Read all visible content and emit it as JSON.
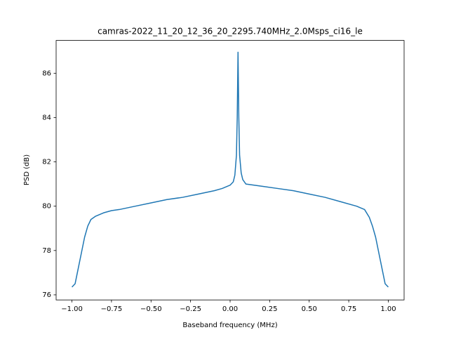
{
  "chart_data": {
    "type": "line",
    "title": "camras-2022_11_20_12_36_20_2295.740MHz_2.0Msps_ci16_le",
    "x_label": "Baseband frequency (MHz)",
    "y_label": "PSD (dB)",
    "xlim": [
      -1.1,
      1.1
    ],
    "ylim": [
      75.77,
      87.48
    ],
    "xticks": [
      {
        "value": -1,
        "label": "−1.00"
      },
      {
        "value": -0.75,
        "label": "−0.75"
      },
      {
        "value": -0.5,
        "label": "−0.50"
      },
      {
        "value": -0.25,
        "label": "−0.25"
      },
      {
        "value": 0,
        "label": "0.00"
      },
      {
        "value": 0.25,
        "label": "0.25"
      },
      {
        "value": 0.5,
        "label": "0.50"
      },
      {
        "value": 0.75,
        "label": "0.75"
      },
      {
        "value": 1,
        "label": "1.00"
      }
    ],
    "yticks": [
      76,
      78,
      80,
      82,
      84,
      86
    ],
    "grid": false,
    "series": [
      {
        "color": "#1f77b4",
        "x": [
          -1.0,
          -0.98,
          -0.96,
          -0.94,
          -0.92,
          -0.9,
          -0.88,
          -0.85,
          -0.8,
          -0.75,
          -0.7,
          -0.6,
          -0.5,
          -0.4,
          -0.3,
          -0.2,
          -0.1,
          -0.05,
          0.0,
          0.02,
          0.03,
          0.04,
          0.045,
          0.05,
          0.055,
          0.06,
          0.07,
          0.08,
          0.1,
          0.2,
          0.3,
          0.4,
          0.5,
          0.6,
          0.7,
          0.8,
          0.85,
          0.88,
          0.9,
          0.92,
          0.94,
          0.96,
          0.98,
          1.0
        ],
        "values": [
          76.35,
          76.5,
          77.2,
          77.9,
          78.6,
          79.1,
          79.4,
          79.55,
          79.7,
          79.8,
          79.85,
          80.0,
          80.15,
          80.3,
          80.4,
          80.55,
          80.7,
          80.8,
          80.95,
          81.1,
          81.4,
          82.3,
          84.0,
          86.95,
          84.0,
          82.3,
          81.5,
          81.2,
          81.0,
          80.9,
          80.8,
          80.7,
          80.55,
          80.4,
          80.2,
          80.0,
          79.85,
          79.5,
          79.1,
          78.6,
          77.9,
          77.2,
          76.5,
          76.35
        ]
      }
    ]
  }
}
